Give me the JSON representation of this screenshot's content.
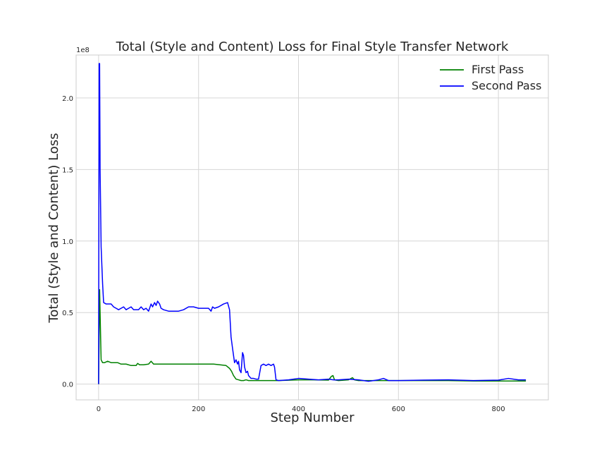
{
  "chart_data": {
    "type": "line",
    "title": "Total (Style and Content) Loss for Final Style Transfer Network",
    "xlabel": "Step Number",
    "ylabel": "Total (Style and Content) Loss",
    "y_scale_label": "1e8",
    "xlim": [
      -45,
      900
    ],
    "ylim": [
      -0.11,
      2.3
    ],
    "y_multiplier": 100000000,
    "grid": true,
    "legend_position": "top-right",
    "x_ticks": [
      0,
      200,
      400,
      600,
      800
    ],
    "x_tick_labels": [
      "0",
      "200",
      "400",
      "600",
      "800"
    ],
    "y_ticks": [
      0.0,
      0.5,
      1.0,
      1.5,
      2.0
    ],
    "y_tick_labels": [
      "0.0",
      "0.5",
      "1.0",
      "1.5",
      "2.0"
    ],
    "series": [
      {
        "name": "First Pass",
        "color": "#008000",
        "x": [
          0,
          2,
          5,
          8,
          12,
          18,
          25,
          32,
          38,
          45,
          55,
          65,
          75,
          78,
          82,
          90,
          100,
          105,
          110,
          120,
          140,
          160,
          180,
          200,
          230,
          255,
          262,
          266,
          270,
          275,
          280,
          285,
          290,
          295,
          300,
          310,
          330,
          360,
          400,
          430,
          460,
          466,
          469,
          472,
          480,
          500,
          508,
          512,
          520,
          560,
          600,
          650,
          700,
          750,
          800,
          840,
          855
        ],
        "y": [
          0.0,
          0.66,
          0.17,
          0.15,
          0.15,
          0.16,
          0.15,
          0.15,
          0.15,
          0.14,
          0.14,
          0.13,
          0.13,
          0.145,
          0.135,
          0.135,
          0.14,
          0.16,
          0.14,
          0.14,
          0.14,
          0.14,
          0.14,
          0.14,
          0.14,
          0.13,
          0.11,
          0.09,
          0.06,
          0.035,
          0.03,
          0.025,
          0.025,
          0.03,
          0.025,
          0.025,
          0.025,
          0.025,
          0.03,
          0.03,
          0.028,
          0.055,
          0.06,
          0.03,
          0.025,
          0.03,
          0.045,
          0.03,
          0.025,
          0.025,
          0.025,
          0.025,
          0.025,
          0.022,
          0.022,
          0.022,
          0.022
        ]
      },
      {
        "name": "Second Pass",
        "color": "#0000ff",
        "x": [
          0,
          1,
          2,
          3,
          5,
          8,
          10,
          15,
          20,
          25,
          30,
          35,
          40,
          45,
          50,
          55,
          60,
          65,
          70,
          75,
          80,
          85,
          90,
          95,
          100,
          105,
          108,
          112,
          115,
          118,
          122,
          125,
          130,
          140,
          150,
          160,
          170,
          180,
          190,
          200,
          210,
          220,
          225,
          228,
          232,
          240,
          250,
          258,
          262,
          265,
          268,
          270,
          272,
          275,
          278,
          280,
          282,
          285,
          288,
          290,
          292,
          295,
          298,
          300,
          305,
          310,
          315,
          320,
          325,
          330,
          335,
          340,
          345,
          350,
          352,
          355,
          360,
          380,
          400,
          420,
          440,
          460,
          470,
          480,
          500,
          520,
          540,
          560,
          570,
          580,
          600,
          650,
          700,
          750,
          800,
          820,
          840,
          855
        ],
        "y": [
          0.0,
          2.24,
          2.24,
          1.5,
          0.96,
          0.7,
          0.57,
          0.56,
          0.56,
          0.56,
          0.54,
          0.53,
          0.52,
          0.53,
          0.54,
          0.52,
          0.53,
          0.54,
          0.52,
          0.52,
          0.52,
          0.54,
          0.52,
          0.53,
          0.51,
          0.56,
          0.54,
          0.57,
          0.55,
          0.58,
          0.56,
          0.53,
          0.52,
          0.51,
          0.51,
          0.51,
          0.52,
          0.54,
          0.54,
          0.53,
          0.53,
          0.53,
          0.51,
          0.54,
          0.53,
          0.54,
          0.56,
          0.57,
          0.52,
          0.33,
          0.25,
          0.2,
          0.15,
          0.17,
          0.14,
          0.16,
          0.1,
          0.08,
          0.22,
          0.2,
          0.12,
          0.08,
          0.09,
          0.06,
          0.04,
          0.04,
          0.035,
          0.035,
          0.13,
          0.14,
          0.13,
          0.14,
          0.13,
          0.14,
          0.12,
          0.03,
          0.025,
          0.03,
          0.04,
          0.035,
          0.03,
          0.035,
          0.03,
          0.03,
          0.035,
          0.03,
          0.02,
          0.03,
          0.04,
          0.025,
          0.025,
          0.028,
          0.03,
          0.025,
          0.028,
          0.04,
          0.03,
          0.03
        ]
      }
    ]
  }
}
